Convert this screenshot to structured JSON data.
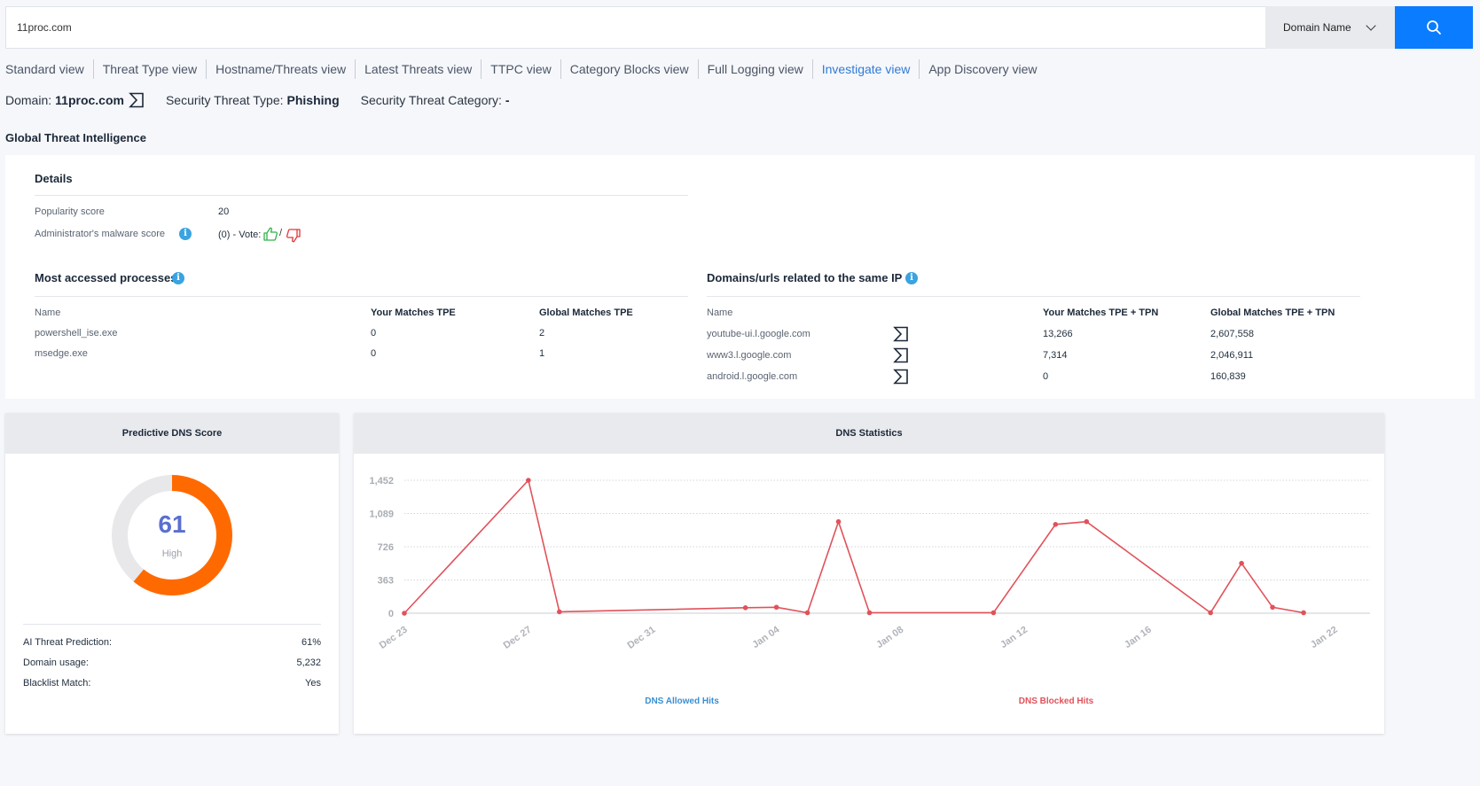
{
  "search": {
    "value": "11proc.com",
    "type_label": "Domain Name"
  },
  "tabs": [
    {
      "label": "Standard view",
      "active": false
    },
    {
      "label": "Threat Type view",
      "active": false
    },
    {
      "label": "Hostname/Threats view",
      "active": false
    },
    {
      "label": "Latest Threats view",
      "active": false
    },
    {
      "label": "TTPC view",
      "active": false
    },
    {
      "label": "Category Blocks view",
      "active": false
    },
    {
      "label": "Full Logging view",
      "active": false
    },
    {
      "label": "Investigate view",
      "active": true
    },
    {
      "label": "App Discovery view",
      "active": false
    }
  ],
  "domain_info": {
    "domain_label": "Domain:",
    "domain_value": "11proc.com",
    "threat_type_label": "Security Threat Type:",
    "threat_type_value": "Phishing",
    "threat_category_label": "Security Threat Category:",
    "threat_category_value": "-"
  },
  "section_title": "Global Threat Intelligence",
  "details": {
    "title": "Details",
    "popularity_label": "Popularity score",
    "popularity_value": "20",
    "malware_label": "Administrator's malware score",
    "malware_value": "(0) - Vote:",
    "vote_separator": "/"
  },
  "processes": {
    "title": "Most accessed processes",
    "headers": [
      "Name",
      "Your Matches TPE",
      "Global Matches TPE"
    ],
    "rows": [
      {
        "name": "powershell_ise.exe",
        "yours": "0",
        "global": "2"
      },
      {
        "name": "msedge.exe",
        "yours": "0",
        "global": "1"
      }
    ]
  },
  "related": {
    "title": "Domains/urls related to the same IP",
    "headers": [
      "Name",
      "Your Matches TPE + TPN",
      "Global Matches TPE + TPN"
    ],
    "rows": [
      {
        "name": "youtube-ui.l.google.com",
        "yours": "13,266",
        "global": "2,607,558"
      },
      {
        "name": "www3.l.google.com",
        "yours": "7,314",
        "global": "2,046,911"
      },
      {
        "name": "android.l.google.com",
        "yours": "0",
        "global": "160,839"
      }
    ]
  },
  "predictive": {
    "title": "Predictive DNS Score",
    "score": 61,
    "score_label": "High",
    "fraction": 0.61,
    "ring_color": "#ff6a00",
    "track_color": "#e8e8ea",
    "score_color": "#5a6fcf",
    "stats": [
      {
        "label": "AI Threat Prediction:",
        "value": "61%"
      },
      {
        "label": "Domain usage:",
        "value": "5,232"
      },
      {
        "label": "Blacklist Match:",
        "value": "Yes"
      }
    ]
  },
  "chart_data": {
    "type": "line",
    "title": "DNS Statistics",
    "xlabel": "",
    "ylabel": "",
    "x_ticks": [
      "Dec 23",
      "Dec 27",
      "Dec 31",
      "Jan 04",
      "Jan 08",
      "Jan 12",
      "Jan 16",
      "Jan 22"
    ],
    "y_ticks": [
      "0",
      "363",
      "726",
      "1,089",
      "1,452"
    ],
    "ylim": [
      0,
      1452
    ],
    "grid": true,
    "legend": [
      "DNS Allowed Hits",
      "DNS Blocked Hits"
    ],
    "legend_colors": [
      "#3a8fd1",
      "#e0525a"
    ],
    "series": [
      {
        "name": "DNS Allowed Hits",
        "color": "#3a8fd1",
        "x": [],
        "values": []
      },
      {
        "name": "DNS Blocked Hits",
        "color": "#e0525a",
        "x": [
          "Dec 23",
          "Dec 27",
          "Dec 28",
          "Jan 03",
          "Jan 04",
          "Jan 05",
          "Jan 06",
          "Jan 07",
          "Jan 11",
          "Jan 13",
          "Jan 14",
          "Jan 18",
          "Jan 19",
          "Jan 20",
          "Jan 21"
        ],
        "values": [
          0,
          1452,
          15,
          60,
          65,
          5,
          1000,
          5,
          5,
          970,
          1000,
          5,
          545,
          65,
          5
        ]
      }
    ]
  }
}
